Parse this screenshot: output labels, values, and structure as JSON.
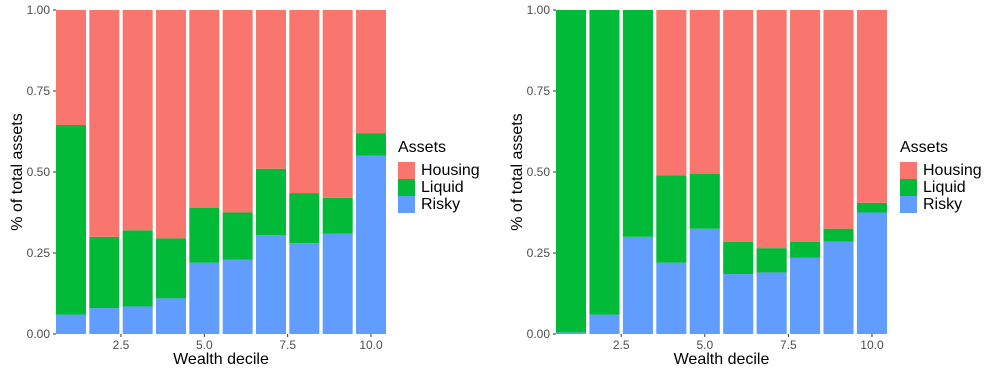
{
  "chart_data": [
    {
      "type": "bar",
      "stacked": true,
      "title": "",
      "xlabel": "Wealth decile",
      "ylabel": "% of total assets",
      "x": [
        1,
        2,
        3,
        4,
        5,
        6,
        7,
        8,
        9,
        10
      ],
      "xlim": [
        0.55,
        10.45
      ],
      "ylim": [
        0,
        1
      ],
      "xticks": [
        "2.5",
        "5.0",
        "7.5",
        "10.0"
      ],
      "xtick_values": [
        2.5,
        5.0,
        7.5,
        10.0
      ],
      "yticks": [
        "0.00",
        "0.25",
        "0.50",
        "0.75",
        "1.00"
      ],
      "ytick_values": [
        0,
        0.25,
        0.5,
        0.75,
        1.0
      ],
      "grid": false,
      "legend": {
        "title": "Assets",
        "placement": "right"
      },
      "series": [
        {
          "name": "Risky",
          "color": "#619CFF",
          "values": [
            0.06,
            0.08,
            0.085,
            0.11,
            0.22,
            0.23,
            0.305,
            0.28,
            0.31,
            0.55
          ]
        },
        {
          "name": "Liquid",
          "color": "#00BA38",
          "values": [
            0.585,
            0.22,
            0.235,
            0.185,
            0.17,
            0.145,
            0.205,
            0.155,
            0.11,
            0.07
          ]
        },
        {
          "name": "Housing",
          "color": "#F8766D",
          "values": [
            0.355,
            0.7,
            0.68,
            0.705,
            0.61,
            0.625,
            0.49,
            0.565,
            0.58,
            0.38
          ]
        }
      ]
    },
    {
      "type": "bar",
      "stacked": true,
      "title": "",
      "xlabel": "Wealth decile",
      "ylabel": "% of total assets",
      "x": [
        1,
        2,
        3,
        4,
        5,
        6,
        7,
        8,
        9,
        10
      ],
      "xlim": [
        0.55,
        10.45
      ],
      "ylim": [
        0,
        1
      ],
      "xticks": [
        "2.5",
        "5.0",
        "7.5",
        "10.0"
      ],
      "xtick_values": [
        2.5,
        5.0,
        7.5,
        10.0
      ],
      "yticks": [
        "0.00",
        "0.25",
        "0.50",
        "0.75",
        "1.00"
      ],
      "ytick_values": [
        0,
        0.25,
        0.5,
        0.75,
        1.0
      ],
      "grid": false,
      "legend": {
        "title": "Assets",
        "placement": "right"
      },
      "series": [
        {
          "name": "Risky",
          "color": "#619CFF",
          "values": [
            0.005,
            0.06,
            0.3,
            0.22,
            0.325,
            0.185,
            0.19,
            0.235,
            0.285,
            0.375
          ]
        },
        {
          "name": "Liquid",
          "color": "#00BA38",
          "values": [
            0.995,
            0.94,
            0.7,
            0.27,
            0.17,
            0.1,
            0.075,
            0.05,
            0.04,
            0.03
          ]
        },
        {
          "name": "Housing",
          "color": "#F8766D",
          "values": [
            0.0,
            0.0,
            0.0,
            0.51,
            0.505,
            0.715,
            0.735,
            0.715,
            0.675,
            0.595
          ]
        }
      ]
    }
  ]
}
